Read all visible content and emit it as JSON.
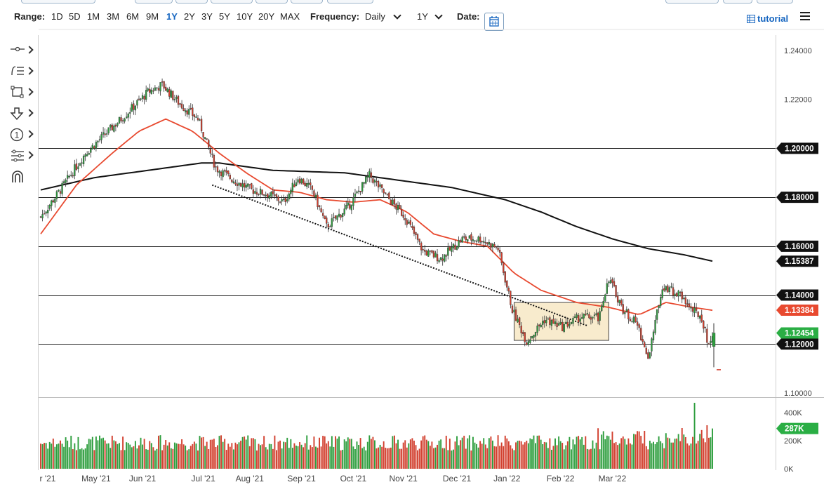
{
  "toolbar": {
    "range_label": "Range:",
    "ranges": [
      "1D",
      "5D",
      "1M",
      "3M",
      "6M",
      "9M",
      "1Y",
      "2Y",
      "3Y",
      "5Y",
      "10Y",
      "20Y",
      "MAX"
    ],
    "active_range": "1Y",
    "frequency_label": "Frequency:",
    "frequency_value": "Daily",
    "period_value": "1Y",
    "date_label": "Date:",
    "tutorial_label": "tutorial"
  },
  "icons": {
    "calendar": "calendar-icon",
    "tutorial": "table-icon",
    "menu": "hamburger-menu-icon",
    "tools": [
      "line-tool-icon",
      "fibonacci-icon",
      "rectangle-icon",
      "arrow-down-icon",
      "annotation-icon",
      "indicators-icon",
      "magnet-icon"
    ]
  },
  "colors": {
    "bull": "#2e9e3e",
    "bear": "#d23f2e",
    "ma_fast": "#e8492f",
    "ma_slow": "#111111",
    "price_tag": "#2aae44",
    "ma_tag": "#e8492f",
    "level_tag": "#111111",
    "box_fill": "#f7e7c4"
  },
  "chart_data": {
    "type": "candlestick",
    "y_ticks": [
      "1.24000",
      "1.22000",
      "1.10000"
    ],
    "x_ticks": [
      "r '21",
      "May '21",
      "Jun '21",
      "Jul '21",
      "Aug '21",
      "Sep '21",
      "Oct '21",
      "Nov '21",
      "Dec '21",
      "Jan '22",
      "Feb '22",
      "Mar '22"
    ],
    "ylim": [
      1.1,
      1.244
    ],
    "horizontal_levels": [
      1.2,
      1.18,
      1.16,
      1.14,
      1.12
    ],
    "level_labels": [
      "1.20000",
      "1.18000",
      "1.16000",
      "1.14000",
      "1.12000"
    ],
    "slow_ma_label": "1.15387",
    "fast_ma_label": "1.13384",
    "last_price_label": "1.12454",
    "price_anchors": [
      [
        0,
        1.172
      ],
      [
        10,
        1.182
      ],
      [
        25,
        1.198
      ],
      [
        45,
        1.212
      ],
      [
        60,
        1.223
      ],
      [
        68,
        1.226
      ],
      [
        78,
        1.218
      ],
      [
        88,
        1.212
      ],
      [
        98,
        1.192
      ],
      [
        108,
        1.187
      ],
      [
        118,
        1.183
      ],
      [
        128,
        1.181
      ],
      [
        136,
        1.178
      ],
      [
        144,
        1.188
      ],
      [
        152,
        1.183
      ],
      [
        160,
        1.168
      ],
      [
        172,
        1.176
      ],
      [
        184,
        1.189
      ],
      [
        194,
        1.18
      ],
      [
        204,
        1.172
      ],
      [
        214,
        1.158
      ],
      [
        224,
        1.155
      ],
      [
        236,
        1.163
      ],
      [
        246,
        1.163
      ],
      [
        256,
        1.159
      ],
      [
        264,
        1.134
      ],
      [
        272,
        1.121
      ],
      [
        282,
        1.13
      ],
      [
        292,
        1.127
      ],
      [
        302,
        1.131
      ],
      [
        312,
        1.131
      ],
      [
        318,
        1.147
      ],
      [
        326,
        1.134
      ],
      [
        334,
        1.128
      ],
      [
        340,
        1.114
      ],
      [
        348,
        1.144
      ],
      [
        358,
        1.14
      ],
      [
        366,
        1.133
      ],
      [
        370,
        1.131
      ],
      [
        374,
        1.119
      ],
      [
        376,
        1.1245
      ]
    ],
    "ma_fast": [
      [
        0,
        1.165
      ],
      [
        20,
        1.185
      ],
      [
        40,
        1.198
      ],
      [
        55,
        1.207
      ],
      [
        70,
        1.212
      ],
      [
        85,
        1.207
      ],
      [
        100,
        1.198
      ],
      [
        115,
        1.19
      ],
      [
        130,
        1.183
      ],
      [
        145,
        1.182
      ],
      [
        160,
        1.179
      ],
      [
        175,
        1.178
      ],
      [
        190,
        1.179
      ],
      [
        205,
        1.174
      ],
      [
        220,
        1.165
      ],
      [
        235,
        1.162
      ],
      [
        250,
        1.16
      ],
      [
        265,
        1.149
      ],
      [
        280,
        1.142
      ],
      [
        300,
        1.137
      ],
      [
        318,
        1.135
      ],
      [
        335,
        1.132
      ],
      [
        350,
        1.137
      ],
      [
        365,
        1.135
      ],
      [
        376,
        1.1338
      ]
    ],
    "ma_slow": [
      [
        0,
        1.183
      ],
      [
        30,
        1.188
      ],
      [
        60,
        1.191
      ],
      [
        90,
        1.194
      ],
      [
        100,
        1.194
      ],
      [
        130,
        1.191
      ],
      [
        170,
        1.19
      ],
      [
        200,
        1.187
      ],
      [
        230,
        1.184
      ],
      [
        260,
        1.179
      ],
      [
        280,
        1.174
      ],
      [
        300,
        1.168
      ],
      [
        320,
        1.163
      ],
      [
        340,
        1.159
      ],
      [
        360,
        1.1565
      ],
      [
        376,
        1.1539
      ]
    ],
    "volume_ticks": [
      "400K",
      "200K",
      "0K"
    ],
    "volume_last_label": "287K",
    "ylim_volume": [
      0,
      480000
    ]
  }
}
